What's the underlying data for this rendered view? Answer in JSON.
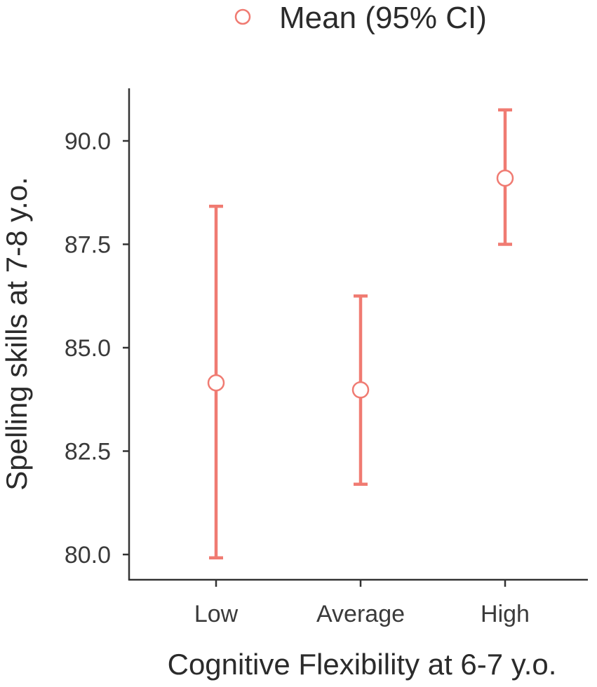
{
  "chart_data": {
    "type": "scatter",
    "title": "",
    "xlabel": "Cognitive Flexibility at 6-7 y.o.",
    "ylabel": "Spelling skills at 7-8 y.o.",
    "categories": [
      "Low",
      "Average",
      "High"
    ],
    "series": [
      {
        "name": "Mean (95% CI)",
        "mean": [
          84.15,
          83.98,
          89.1
        ],
        "ci_lower": [
          79.92,
          81.7,
          87.5
        ],
        "ci_upper": [
          88.42,
          86.25,
          90.75
        ]
      }
    ],
    "yticks": [
      "80.0",
      "82.5",
      "85.0",
      "87.5",
      "90.0"
    ],
    "ylim": [
      79.4,
      91.3
    ],
    "grid": false,
    "legend": {
      "position": "top",
      "label": "Mean (95% CI)",
      "marker": "open-circle"
    },
    "colors": {
      "series": "#f07b72",
      "axis": "#333333"
    }
  }
}
